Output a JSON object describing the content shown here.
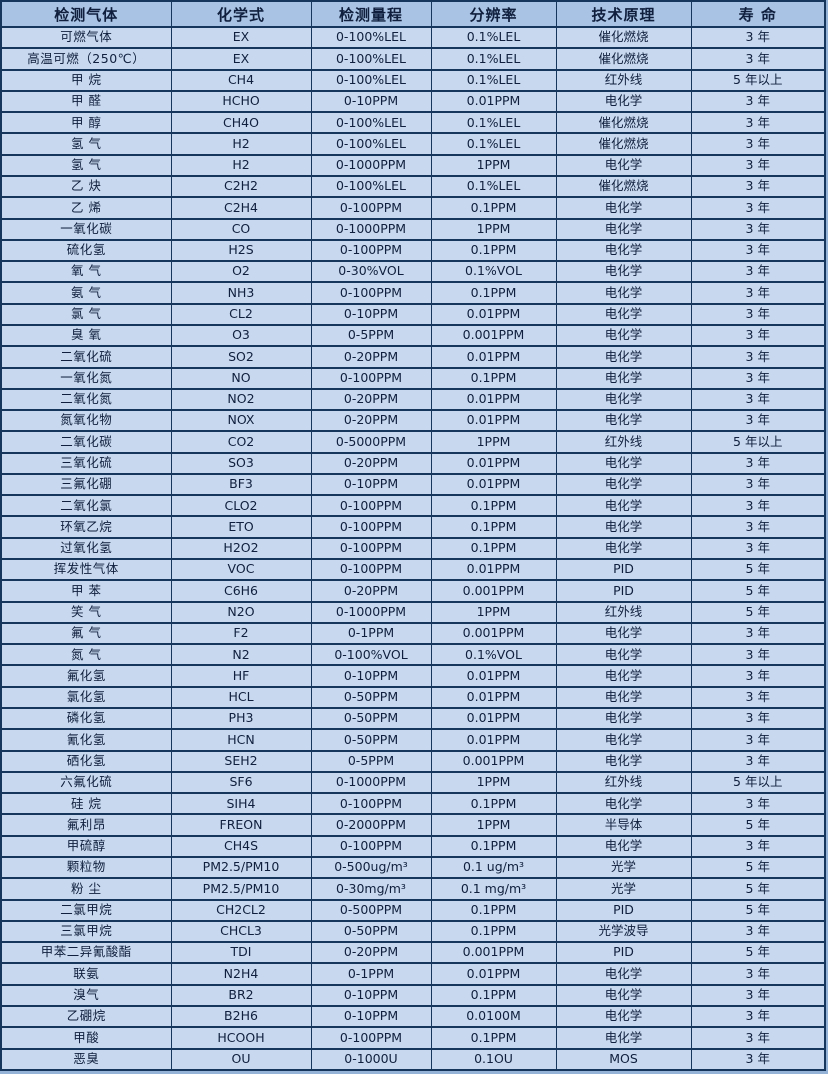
{
  "theme": {
    "header_bg": "#a9c3e4",
    "row_bg": "#c8d9ef",
    "border_color": "#16365c",
    "frame_color": "#95b3d7",
    "text_color": "#0f1f3d"
  },
  "table": {
    "columns": [
      "检测气体",
      "化学式",
      "检测量程",
      "分辨率",
      "技术原理",
      "寿  命"
    ],
    "rows": [
      [
        "可燃气体",
        "EX",
        "0-100%LEL",
        "0.1%LEL",
        "催化燃烧",
        "3 年"
      ],
      [
        "高温可燃（250℃）",
        "EX",
        "0-100%LEL",
        "0.1%LEL",
        "催化燃烧",
        "3 年"
      ],
      [
        "甲  烷",
        "CH4",
        "0-100%LEL",
        "0.1%LEL",
        "红外线",
        "5 年以上"
      ],
      [
        "甲  醛",
        "HCHO",
        "0-10PPM",
        "0.01PPM",
        "电化学",
        "3 年"
      ],
      [
        "甲  醇",
        "CH4O",
        "0-100%LEL",
        "0.1%LEL",
        "催化燃烧",
        "3 年"
      ],
      [
        "氢  气",
        "H2",
        "0-100%LEL",
        "0.1%LEL",
        "催化燃烧",
        "3 年"
      ],
      [
        "氢  气",
        "H2",
        "0-1000PPM",
        "1PPM",
        "电化学",
        "3 年"
      ],
      [
        "乙  炔",
        "C2H2",
        "0-100%LEL",
        "0.1%LEL",
        "催化燃烧",
        "3 年"
      ],
      [
        "乙  烯",
        "C2H4",
        "0-100PPM",
        "0.1PPM",
        "电化学",
        "3 年"
      ],
      [
        "一氧化碳",
        "CO",
        "0-1000PPM",
        "1PPM",
        "电化学",
        "3 年"
      ],
      [
        "硫化氢",
        "H2S",
        "0-100PPM",
        "0.1PPM",
        "电化学",
        "3 年"
      ],
      [
        "氧  气",
        "O2",
        "0-30%VOL",
        "0.1%VOL",
        "电化学",
        "3 年"
      ],
      [
        "氨  气",
        "NH3",
        "0-100PPM",
        "0.1PPM",
        "电化学",
        "3 年"
      ],
      [
        "氯  气",
        "CL2",
        "0-10PPM",
        "0.01PPM",
        "电化学",
        "3 年"
      ],
      [
        "臭  氧",
        "O3",
        "0-5PPM",
        "0.001PPM",
        "电化学",
        "3 年"
      ],
      [
        "二氧化硫",
        "SO2",
        "0-20PPM",
        "0.01PPM",
        "电化学",
        "3 年"
      ],
      [
        "一氧化氮",
        "NO",
        "0-100PPM",
        "0.1PPM",
        "电化学",
        "3 年"
      ],
      [
        "二氧化氮",
        "NO2",
        "0-20PPM",
        "0.01PPM",
        "电化学",
        "3 年"
      ],
      [
        "氮氧化物",
        "NOX",
        "0-20PPM",
        "0.01PPM",
        "电化学",
        "3 年"
      ],
      [
        "二氧化碳",
        "CO2",
        "0-5000PPM",
        "1PPM",
        "红外线",
        "5 年以上"
      ],
      [
        "三氧化硫",
        "SO3",
        "0-20PPM",
        "0.01PPM",
        "电化学",
        "3 年"
      ],
      [
        "三氟化硼",
        "BF3",
        "0-10PPM",
        "0.01PPM",
        "电化学",
        "3 年"
      ],
      [
        "二氧化氯",
        "CLO2",
        "0-100PPM",
        "0.1PPM",
        "电化学",
        "3 年"
      ],
      [
        "环氧乙烷",
        "ETO",
        "0-100PPM",
        "0.1PPM",
        "电化学",
        "3 年"
      ],
      [
        "过氧化氢",
        "H2O2",
        "0-100PPM",
        "0.1PPM",
        "电化学",
        "3 年"
      ],
      [
        "挥发性气体",
        "VOC",
        "0-100PPM",
        "0.01PPM",
        "PID",
        "5 年"
      ],
      [
        "甲  苯",
        "C6H6",
        "0-20PPM",
        "0.001PPM",
        "PID",
        "5 年"
      ],
      [
        "笑  气",
        "N2O",
        "0-1000PPM",
        "1PPM",
        "红外线",
        "5 年"
      ],
      [
        "氟  气",
        "F2",
        "0-1PPM",
        "0.001PPM",
        "电化学",
        "3 年"
      ],
      [
        "氮  气",
        "N2",
        "0-100%VOL",
        "0.1%VOL",
        "电化学",
        "3 年"
      ],
      [
        "氟化氢",
        "HF",
        "0-10PPM",
        "0.01PPM",
        "电化学",
        "3 年"
      ],
      [
        "氯化氢",
        "HCL",
        "0-50PPM",
        "0.01PPM",
        "电化学",
        "3 年"
      ],
      [
        "磷化氢",
        "PH3",
        "0-50PPM",
        "0.01PPM",
        "电化学",
        "3 年"
      ],
      [
        "氰化氢",
        "HCN",
        "0-50PPM",
        "0.01PPM",
        "电化学",
        "3 年"
      ],
      [
        "硒化氢",
        "SEH2",
        "0-5PPM",
        "0.001PPM",
        "电化学",
        "3 年"
      ],
      [
        "六氟化硫",
        "SF6",
        "0-1000PPM",
        "1PPM",
        "红外线",
        "5 年以上"
      ],
      [
        "硅  烷",
        "SIH4",
        "0-100PPM",
        "0.1PPM",
        "电化学",
        "3 年"
      ],
      [
        "氟利昂",
        "FREON",
        "0-2000PPM",
        "1PPM",
        "半导体",
        "5 年"
      ],
      [
        "甲硫醇",
        "CH4S",
        "0-100PPM",
        "0.1PPM",
        "电化学",
        "3 年"
      ],
      [
        "颗粒物",
        "PM2.5/PM10",
        "0-500ug/m³",
        "0.1 ug/m³",
        "光学",
        "5 年"
      ],
      [
        "粉  尘",
        "PM2.5/PM10",
        "0-30mg/m³",
        "0.1 mg/m³",
        "光学",
        "5 年"
      ],
      [
        "二氯甲烷",
        "CH2CL2",
        "0-500PPM",
        "0.1PPM",
        "PID",
        "5 年"
      ],
      [
        "三氯甲烷",
        "CHCL3",
        "0-50PPM",
        "0.1PPM",
        "光学波导",
        "3 年"
      ],
      [
        "甲苯二异氰酸酯",
        "TDI",
        "0-20PPM",
        "0.001PPM",
        "PID",
        "5 年"
      ],
      [
        "联氨",
        "N2H4",
        "0-1PPM",
        "0.01PPM",
        "电化学",
        "3 年"
      ],
      [
        "溴气",
        "BR2",
        "0-10PPM",
        "0.1PPM",
        "电化学",
        "3 年"
      ],
      [
        "乙硼烷",
        "B2H6",
        "0-10PPM",
        "0.0100M",
        "电化学",
        "3 年"
      ],
      [
        "甲酸",
        "HCOOH",
        "0-100PPM",
        "0.1PPM",
        "电化学",
        "3 年"
      ],
      [
        "恶臭",
        "OU",
        "0-1000U",
        "0.1OU",
        "MOS",
        "3 年"
      ]
    ]
  }
}
